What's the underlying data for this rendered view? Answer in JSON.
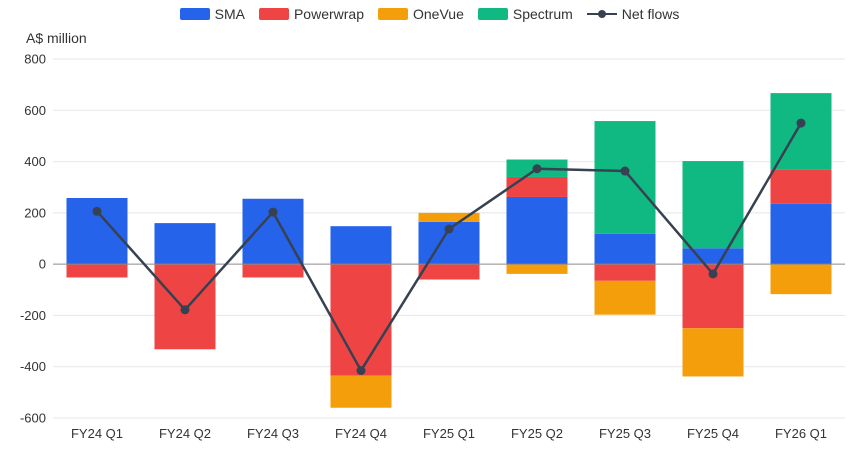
{
  "chart_data": {
    "type": "bar",
    "stacked": true,
    "ylabel": "A$ million",
    "ylim": [
      -600,
      800
    ],
    "yticks": [
      -600,
      -400,
      -200,
      0,
      200,
      400,
      600,
      800
    ],
    "ytick_labels": [
      "-600",
      "-400",
      "-200",
      "0",
      "200",
      "400",
      "600",
      "800"
    ],
    "categories": [
      "FY24 Q1",
      "FY24 Q2",
      "FY24 Q3",
      "FY24 Q4",
      "FY25 Q1",
      "FY25 Q2",
      "FY25 Q3",
      "FY25 Q4",
      "FY26 Q1"
    ],
    "series": [
      {
        "name": "SMA",
        "kind": "bar",
        "color": "#2563eb",
        "values": [
          258,
          160,
          255,
          148,
          165,
          262,
          118,
          62,
          235
        ]
      },
      {
        "name": "Powerwrap",
        "kind": "bar",
        "color": "#ef4444",
        "values": [
          -52,
          -332,
          -52,
          -435,
          -60,
          78,
          -65,
          -250,
          135
        ]
      },
      {
        "name": "OneVue",
        "kind": "bar",
        "color": "#f59e0b",
        "values": [
          0,
          0,
          0,
          -125,
          35,
          -38,
          -132,
          -188,
          -117
        ]
      },
      {
        "name": "Spectrum",
        "kind": "bar",
        "color": "#10b981",
        "values": [
          0,
          0,
          0,
          0,
          0,
          68,
          440,
          340,
          297
        ]
      },
      {
        "name": "Net flows",
        "kind": "line",
        "color": "#374151",
        "values": [
          206,
          -178,
          203,
          -415,
          137,
          372,
          363,
          -38,
          550
        ]
      }
    ],
    "legend_position": "top-center",
    "grid": true
  }
}
